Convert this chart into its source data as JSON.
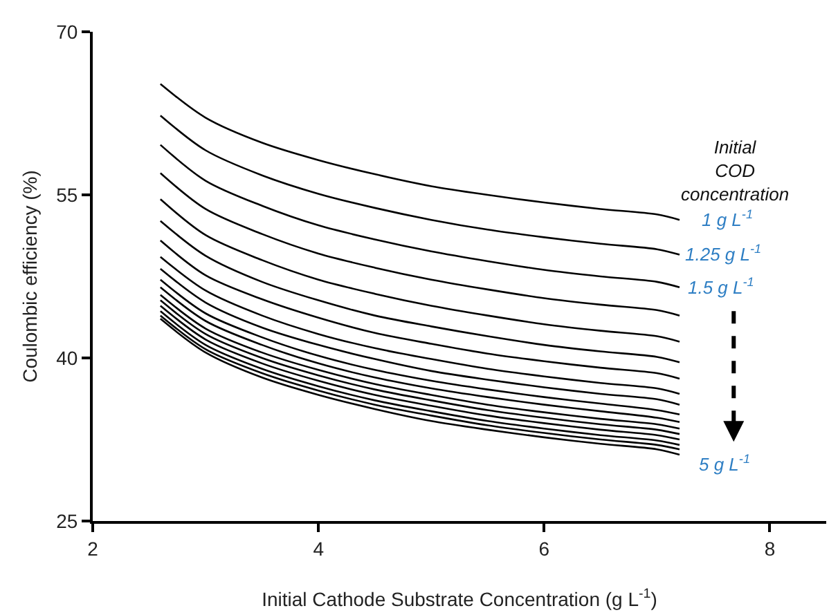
{
  "chart_data": {
    "type": "line",
    "xlabel": "Initial Cathode Substrate Concentration (g L$^{-1}$)",
    "ylabel": "Coulombic efficiency (%)",
    "x": [
      2.6,
      3,
      3.5,
      4,
      4.5,
      5,
      5.5,
      6,
      6.5,
      7,
      7.2
    ],
    "xlim": [
      2,
      8.5
    ],
    "xticks": [
      2,
      4,
      6,
      8
    ],
    "ylim": [
      25,
      70
    ],
    "yticks": [
      25,
      40,
      55,
      70
    ],
    "marker": "none",
    "line_style": "solid",
    "series": [
      {
        "color": "#000000",
        "values": [
          65.2,
          62.1,
          59.8,
          58.2,
          56.9,
          55.8,
          55.0,
          54.3,
          53.7,
          53.2,
          52.7
        ]
      },
      {
        "color": "#000000",
        "values": [
          62.3,
          59.1,
          56.8,
          55.1,
          53.8,
          52.7,
          51.8,
          51.1,
          50.5,
          50.0,
          49.5
        ]
      },
      {
        "color": "#000000",
        "values": [
          59.6,
          56.3,
          54.0,
          52.2,
          50.9,
          49.8,
          48.9,
          48.1,
          47.5,
          47.0,
          46.5
        ]
      },
      {
        "color": "#000000",
        "values": [
          57.0,
          53.7,
          51.4,
          49.6,
          48.3,
          47.2,
          46.3,
          45.5,
          44.9,
          44.4,
          43.9
        ]
      },
      {
        "color": "#000000",
        "values": [
          54.6,
          51.3,
          49.0,
          47.2,
          45.9,
          44.8,
          43.9,
          43.1,
          42.5,
          42.0,
          41.5
        ]
      },
      {
        "color": "#000000",
        "values": [
          52.6,
          49.4,
          47.0,
          45.3,
          43.9,
          42.9,
          42.0,
          41.2,
          40.6,
          40.1,
          39.6
        ]
      },
      {
        "color": "#000000",
        "values": [
          50.8,
          47.6,
          45.4,
          43.7,
          42.3,
          41.3,
          40.4,
          39.7,
          39.1,
          38.6,
          38.1
        ]
      },
      {
        "color": "#000000",
        "values": [
          49.3,
          46.2,
          43.9,
          42.2,
          40.9,
          39.9,
          39.0,
          38.3,
          37.7,
          37.2,
          36.7
        ]
      },
      {
        "color": "#000000",
        "values": [
          48.2,
          45.1,
          42.8,
          41.2,
          39.9,
          38.8,
          38.0,
          37.3,
          36.7,
          36.2,
          35.7
        ]
      },
      {
        "color": "#000000",
        "values": [
          47.2,
          44.1,
          41.9,
          40.2,
          38.9,
          37.9,
          37.1,
          36.4,
          35.8,
          35.2,
          34.8
        ]
      },
      {
        "color": "#000000",
        "values": [
          46.5,
          43.4,
          41.2,
          39.5,
          38.2,
          37.2,
          36.4,
          35.7,
          35.1,
          34.5,
          34.1
        ]
      },
      {
        "color": "#000000",
        "values": [
          45.8,
          42.7,
          40.5,
          38.9,
          37.6,
          36.6,
          35.7,
          35.0,
          34.4,
          33.9,
          33.5
        ]
      },
      {
        "color": "#000000",
        "values": [
          45.3,
          42.2,
          40.0,
          38.4,
          37.1,
          36.1,
          35.2,
          34.5,
          33.9,
          33.4,
          33.0
        ]
      },
      {
        "color": "#000000",
        "values": [
          44.8,
          41.7,
          39.5,
          37.9,
          36.6,
          35.6,
          34.7,
          34.0,
          33.4,
          32.9,
          32.5
        ]
      },
      {
        "color": "#000000",
        "values": [
          44.3,
          41.2,
          39.0,
          37.4,
          36.1,
          35.1,
          34.2,
          33.5,
          32.9,
          32.4,
          32.0
        ]
      },
      {
        "color": "#000000",
        "values": [
          43.9,
          40.8,
          38.6,
          37.0,
          35.7,
          34.7,
          33.8,
          33.1,
          32.5,
          32.0,
          31.6
        ]
      },
      {
        "color": "#000000",
        "values": [
          43.6,
          40.5,
          38.2,
          36.6,
          35.3,
          34.2,
          33.4,
          32.7,
          32.1,
          31.6,
          31.1
        ]
      }
    ],
    "annotations": [
      "Initial\nCOD\nconcentration",
      "1 g L$^{-1}$",
      "1.25 g L$^{-1}$",
      "1.5 g L$^{-1}$",
      "5 g L$^{-1}$"
    ]
  }
}
